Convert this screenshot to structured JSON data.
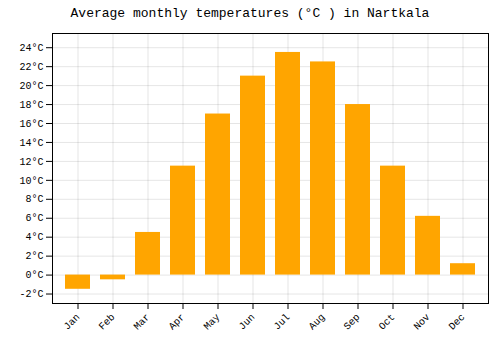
{
  "chart_data": {
    "type": "bar",
    "title": "Average monthly temperatures (°C ) in Nartkala",
    "categories": [
      "Jan",
      "Feb",
      "Mar",
      "Apr",
      "May",
      "Jun",
      "Jul",
      "Aug",
      "Sep",
      "Oct",
      "Nov",
      "Dec"
    ],
    "values": [
      -1.5,
      -0.5,
      4.5,
      11.5,
      17.0,
      21.0,
      23.5,
      22.5,
      18.0,
      11.5,
      6.2,
      1.2
    ],
    "color": "#FFA500",
    "ylim": [
      -3,
      25.5
    ],
    "yticks": [
      {
        "value": -2,
        "label": "-2°C"
      },
      {
        "value": 0,
        "label": "0°C"
      },
      {
        "value": 2,
        "label": "2°C"
      },
      {
        "value": 4,
        "label": "4°C"
      },
      {
        "value": 6,
        "label": "6°C"
      },
      {
        "value": 8,
        "label": "8°C"
      },
      {
        "value": 10,
        "label": "10°C"
      },
      {
        "value": 12,
        "label": "12°C"
      },
      {
        "value": 14,
        "label": "14°C"
      },
      {
        "value": 16,
        "label": "16°C"
      },
      {
        "value": 18,
        "label": "18°C"
      },
      {
        "value": 20,
        "label": "20°C"
      },
      {
        "value": 22,
        "label": "22°C"
      },
      {
        "value": 24,
        "label": "24°C"
      }
    ],
    "grid": true
  }
}
